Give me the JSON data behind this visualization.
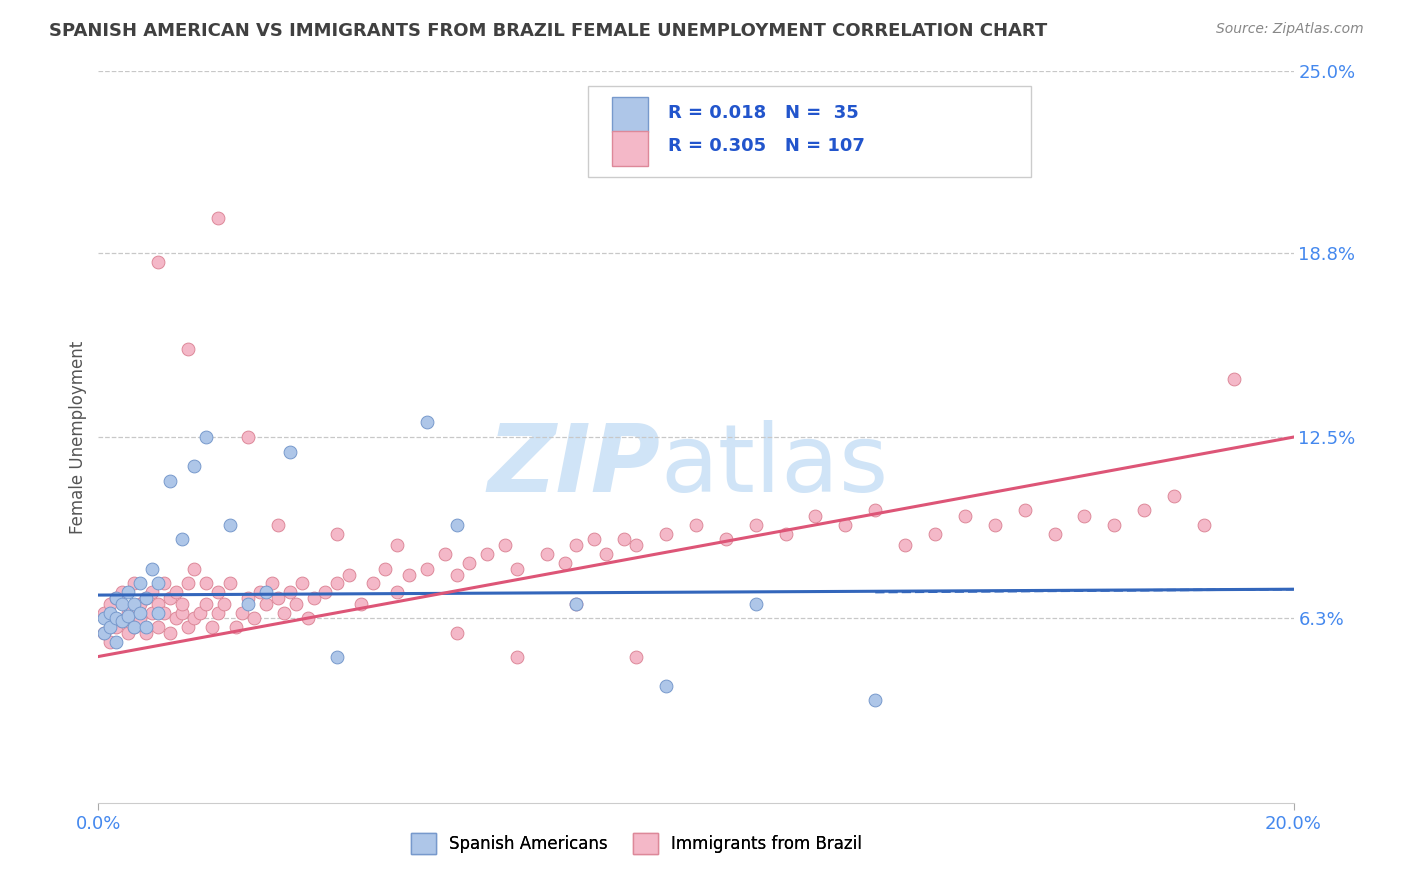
{
  "title": "SPANISH AMERICAN VS IMMIGRANTS FROM BRAZIL FEMALE UNEMPLOYMENT CORRELATION CHART",
  "source": "Source: ZipAtlas.com",
  "ylabel": "Female Unemployment",
  "x_min": 0.0,
  "x_max": 0.2,
  "y_min": 0.0,
  "y_max": 0.25,
  "y_ticks": [
    0.063,
    0.125,
    0.188,
    0.25
  ],
  "y_tick_labels": [
    "6.3%",
    "12.5%",
    "18.8%",
    "25.0%"
  ],
  "x_ticks": [
    0.0,
    0.2
  ],
  "x_tick_labels": [
    "0.0%",
    "20.0%"
  ],
  "bg_color": "#ffffff",
  "grid_color": "#c8c8c8",
  "title_color": "#404040",
  "axis_label_color": "#4488ee",
  "series1_name": "Spanish Americans",
  "series1_color": "#aec6e8",
  "series1_edge_color": "#7799cc",
  "series1_R": 0.018,
  "series1_N": 35,
  "series2_name": "Immigrants from Brazil",
  "series2_color": "#f4b8c8",
  "series2_edge_color": "#dd8899",
  "series2_R": 0.305,
  "series2_N": 107,
  "line1_color": "#3366bb",
  "line2_color": "#dd5577",
  "legend_text_color": "#2255cc",
  "watermark_color": "#d0e4f7",
  "spanish_x": [
    0.001,
    0.001,
    0.002,
    0.002,
    0.003,
    0.003,
    0.003,
    0.004,
    0.004,
    0.005,
    0.005,
    0.006,
    0.006,
    0.007,
    0.007,
    0.008,
    0.008,
    0.009,
    0.01,
    0.01,
    0.012,
    0.014,
    0.016,
    0.018,
    0.022,
    0.025,
    0.028,
    0.032,
    0.04,
    0.055,
    0.06,
    0.08,
    0.095,
    0.11,
    0.13
  ],
  "spanish_y": [
    0.063,
    0.058,
    0.065,
    0.06,
    0.07,
    0.063,
    0.055,
    0.068,
    0.062,
    0.064,
    0.072,
    0.06,
    0.068,
    0.065,
    0.075,
    0.06,
    0.07,
    0.08,
    0.065,
    0.075,
    0.11,
    0.09,
    0.115,
    0.125,
    0.095,
    0.068,
    0.072,
    0.12,
    0.05,
    0.13,
    0.095,
    0.068,
    0.04,
    0.068,
    0.035
  ],
  "brazil_x": [
    0.001,
    0.001,
    0.002,
    0.002,
    0.003,
    0.003,
    0.004,
    0.004,
    0.005,
    0.005,
    0.006,
    0.006,
    0.007,
    0.007,
    0.008,
    0.008,
    0.009,
    0.009,
    0.01,
    0.01,
    0.011,
    0.011,
    0.012,
    0.012,
    0.013,
    0.013,
    0.014,
    0.014,
    0.015,
    0.015,
    0.016,
    0.016,
    0.017,
    0.018,
    0.018,
    0.019,
    0.02,
    0.02,
    0.021,
    0.022,
    0.023,
    0.024,
    0.025,
    0.026,
    0.027,
    0.028,
    0.029,
    0.03,
    0.031,
    0.032,
    0.033,
    0.034,
    0.035,
    0.036,
    0.038,
    0.04,
    0.042,
    0.044,
    0.046,
    0.048,
    0.05,
    0.052,
    0.055,
    0.058,
    0.06,
    0.062,
    0.065,
    0.068,
    0.07,
    0.075,
    0.078,
    0.08,
    0.083,
    0.085,
    0.088,
    0.09,
    0.095,
    0.1,
    0.105,
    0.11,
    0.115,
    0.12,
    0.125,
    0.13,
    0.135,
    0.14,
    0.145,
    0.15,
    0.155,
    0.16,
    0.165,
    0.17,
    0.175,
    0.18,
    0.185,
    0.19,
    0.01,
    0.015,
    0.02,
    0.025,
    0.03,
    0.04,
    0.05,
    0.06,
    0.07,
    0.08,
    0.09
  ],
  "brazil_y": [
    0.058,
    0.065,
    0.055,
    0.068,
    0.06,
    0.07,
    0.062,
    0.072,
    0.058,
    0.065,
    0.06,
    0.075,
    0.063,
    0.068,
    0.07,
    0.058,
    0.065,
    0.072,
    0.06,
    0.068,
    0.065,
    0.075,
    0.058,
    0.07,
    0.063,
    0.072,
    0.065,
    0.068,
    0.06,
    0.075,
    0.063,
    0.08,
    0.065,
    0.068,
    0.075,
    0.06,
    0.065,
    0.072,
    0.068,
    0.075,
    0.06,
    0.065,
    0.07,
    0.063,
    0.072,
    0.068,
    0.075,
    0.07,
    0.065,
    0.072,
    0.068,
    0.075,
    0.063,
    0.07,
    0.072,
    0.075,
    0.078,
    0.068,
    0.075,
    0.08,
    0.072,
    0.078,
    0.08,
    0.085,
    0.078,
    0.082,
    0.085,
    0.088,
    0.08,
    0.085,
    0.082,
    0.088,
    0.09,
    0.085,
    0.09,
    0.088,
    0.092,
    0.095,
    0.09,
    0.095,
    0.092,
    0.098,
    0.095,
    0.1,
    0.088,
    0.092,
    0.098,
    0.095,
    0.1,
    0.092,
    0.098,
    0.095,
    0.1,
    0.105,
    0.095,
    0.145,
    0.185,
    0.155,
    0.2,
    0.125,
    0.095,
    0.092,
    0.088,
    0.058,
    0.05,
    0.068,
    0.05
  ]
}
